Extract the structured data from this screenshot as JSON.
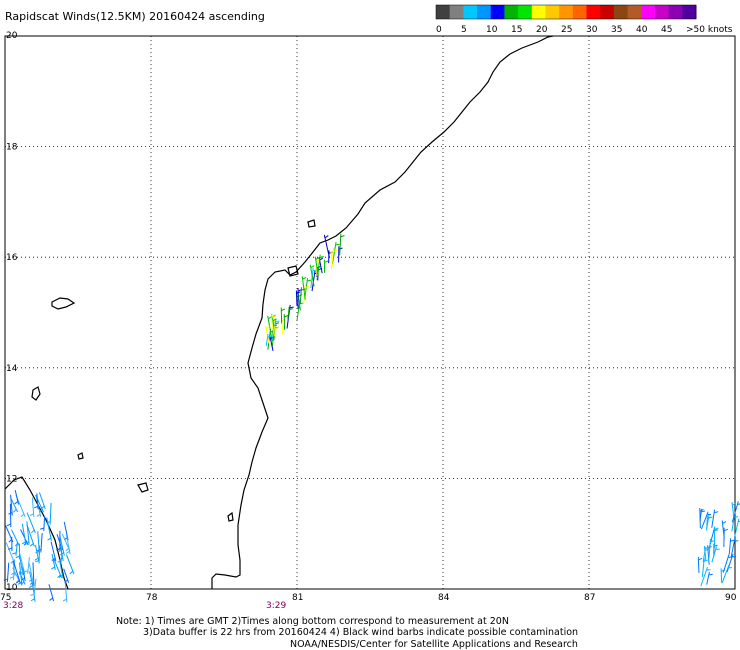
{
  "title": "Rapidscat Winds(12.5KM) 20160424 ascending",
  "legend": {
    "ticks": [
      "0",
      "5",
      "10",
      "15",
      "20",
      "25",
      "30",
      "35",
      "40",
      "45",
      ">50 knots"
    ],
    "colors": [
      "#404040",
      "#808080",
      "#00c8ff",
      "#0096ff",
      "#0000ff",
      "#00b400",
      "#00e600",
      "#ffff00",
      "#ffc800",
      "#ff9600",
      "#ff6400",
      "#ff0000",
      "#c80000",
      "#8c4614",
      "#b45a28",
      "#ff00ff",
      "#c800c8",
      "#8c00b4",
      "#5000a0"
    ]
  },
  "axes": {
    "lon_labels": [
      "75",
      "78",
      "81",
      "84",
      "87",
      "90"
    ],
    "lat_labels": [
      "20",
      "18",
      "16",
      "14",
      "12",
      "10"
    ],
    "lon_range": [
      75,
      90
    ],
    "lat_range": [
      10,
      20
    ],
    "grid": "dotted"
  },
  "times": [
    "3:28",
    "3:29"
  ],
  "notes": [
    "Note: 1) Times are GMT 2)Times along bottom correspond to measurement at 20N",
    "3)Data buffer is 22 hrs from 20160424 4) Black wind barbs indicate possible contamination",
    "NOAA/NESDIS/Center for Satellite Applications and Research"
  ],
  "map": {
    "coast_color": "#000000",
    "wind_swaths": [
      {
        "region": "west",
        "colors": [
          "#00a0ff",
          "#0064ff",
          "#3cb4ff"
        ]
      },
      {
        "region": "central",
        "colors": [
          "#00a000",
          "#0000d0",
          "#ffff00",
          "#00c000",
          "#00c8ff"
        ]
      },
      {
        "region": "east",
        "colors": [
          "#00b4ff",
          "#0078ff"
        ]
      }
    ]
  }
}
